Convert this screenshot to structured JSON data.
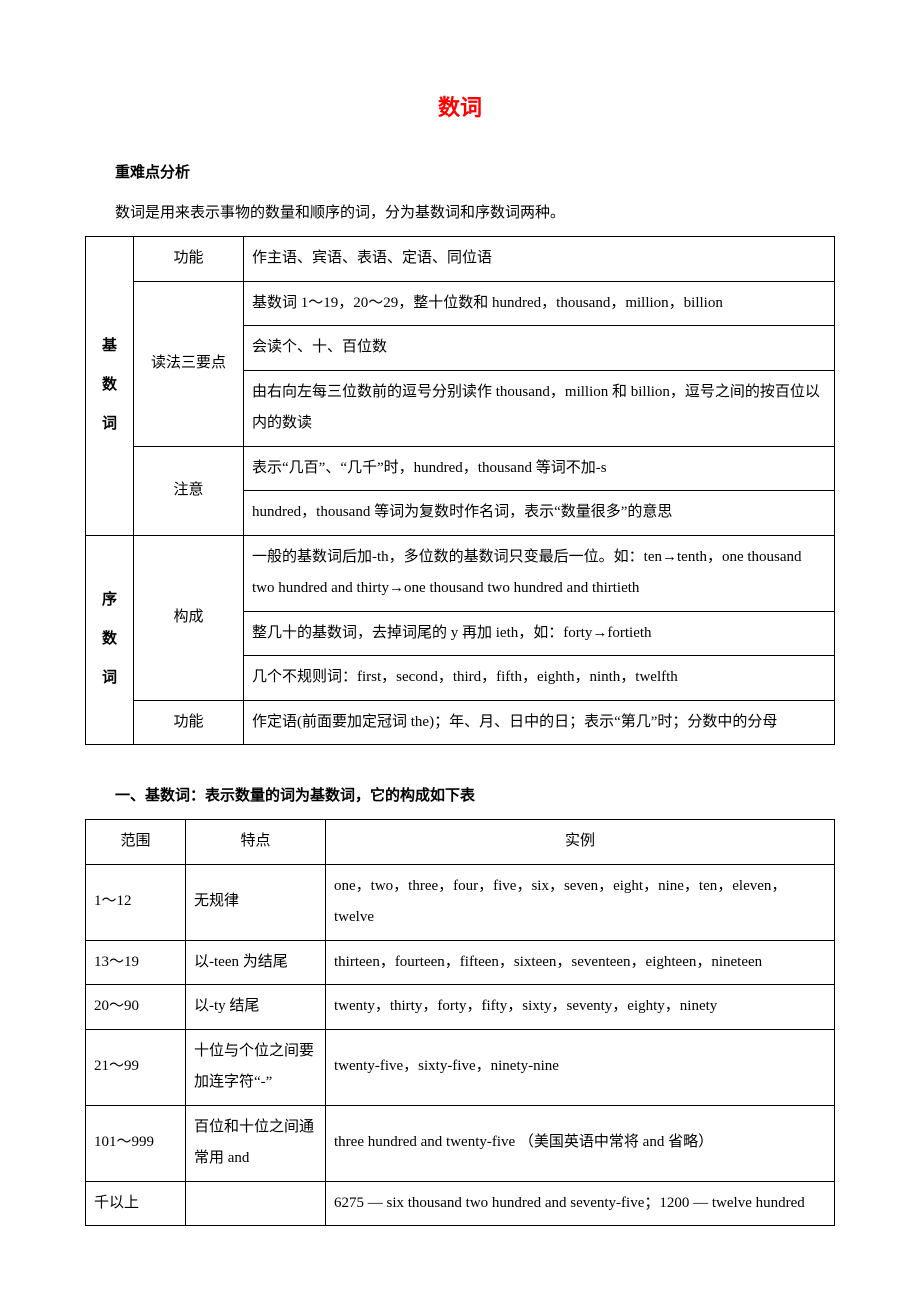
{
  "title": "数词",
  "title_color": "#ff0000",
  "section_head": "重难点分析",
  "intro": "数词是用来表示事物的数量和顺序的词，分为基数词和序数词两种。",
  "table1": {
    "cardinal_label": "基数词",
    "ordinal_label": "序数词",
    "rows": {
      "function_label": "功能",
      "function_text": "作主语、宾语、表语、定语、同位语",
      "reading_label": "读法三要点",
      "reading_a": "基数词 1～19，20～29，整十位数和 hundred，thousand，million，billion",
      "reading_b": "会读个、十、百位数",
      "reading_c": "由右向左每三位数前的逗号分别读作 thousand，million 和 billion，逗号之间的按百位以内的数读",
      "note_label": "注意",
      "note_a": "表示“几百”、“几千”时，hundred，thousand 等词不加-s",
      "note_b": "hundred，thousand 等词为复数时作名词，表示“数量很多”的意思",
      "ord_make_label": "构成",
      "ord_make_a": "一般的基数词后加-th，多位数的基数词只变最后一位。如：ten→tenth，one thousand two hundred and thirty→one thousand two hundred and thirtieth",
      "ord_make_b": "整几十的基数词，去掉词尾的 y 再加 ieth，如：forty→fortieth",
      "ord_make_c": "几个不规则词：first，second，third，fifth，eighth，ninth，twelfth",
      "ord_func_label": "功能",
      "ord_func_text": "作定语(前面要加定冠词 the)；年、月、日中的日；表示“第几”时；分数中的分母"
    }
  },
  "section2_title": "一、基数词：表示数量的词为基数词，它的构成如下表",
  "table2": {
    "headers": {
      "range": "范围",
      "feature": "特点",
      "example": "实例"
    },
    "rows": [
      {
        "range": "1～12",
        "feature": "无规律",
        "example": "one，two，three，four，five，six，seven，eight，nine，ten，eleven，twelve"
      },
      {
        "range": "13～19",
        "feature": "以-teen 为结尾",
        "example": "thirteen，fourteen，fifteen，sixteen，seventeen，eighteen，nineteen"
      },
      {
        "range": "20～90",
        "feature": "以-ty 结尾",
        "example": "twenty，thirty，forty，fifty，sixty，seventy，eighty，ninety"
      },
      {
        "range": "21～99",
        "feature": "十位与个位之间要加连字符“-”",
        "example": "twenty-five，sixty-five，ninety-nine"
      },
      {
        "range": "101～999",
        "feature": "百位和十位之间通常用 and",
        "example": "three hundred and twenty-five （美国英语中常将 and 省略）"
      },
      {
        "range": "千以上",
        "feature": "",
        "example": "6275 — six thousand two hundred and seventy-five；1200 — twelve hundred"
      }
    ]
  }
}
